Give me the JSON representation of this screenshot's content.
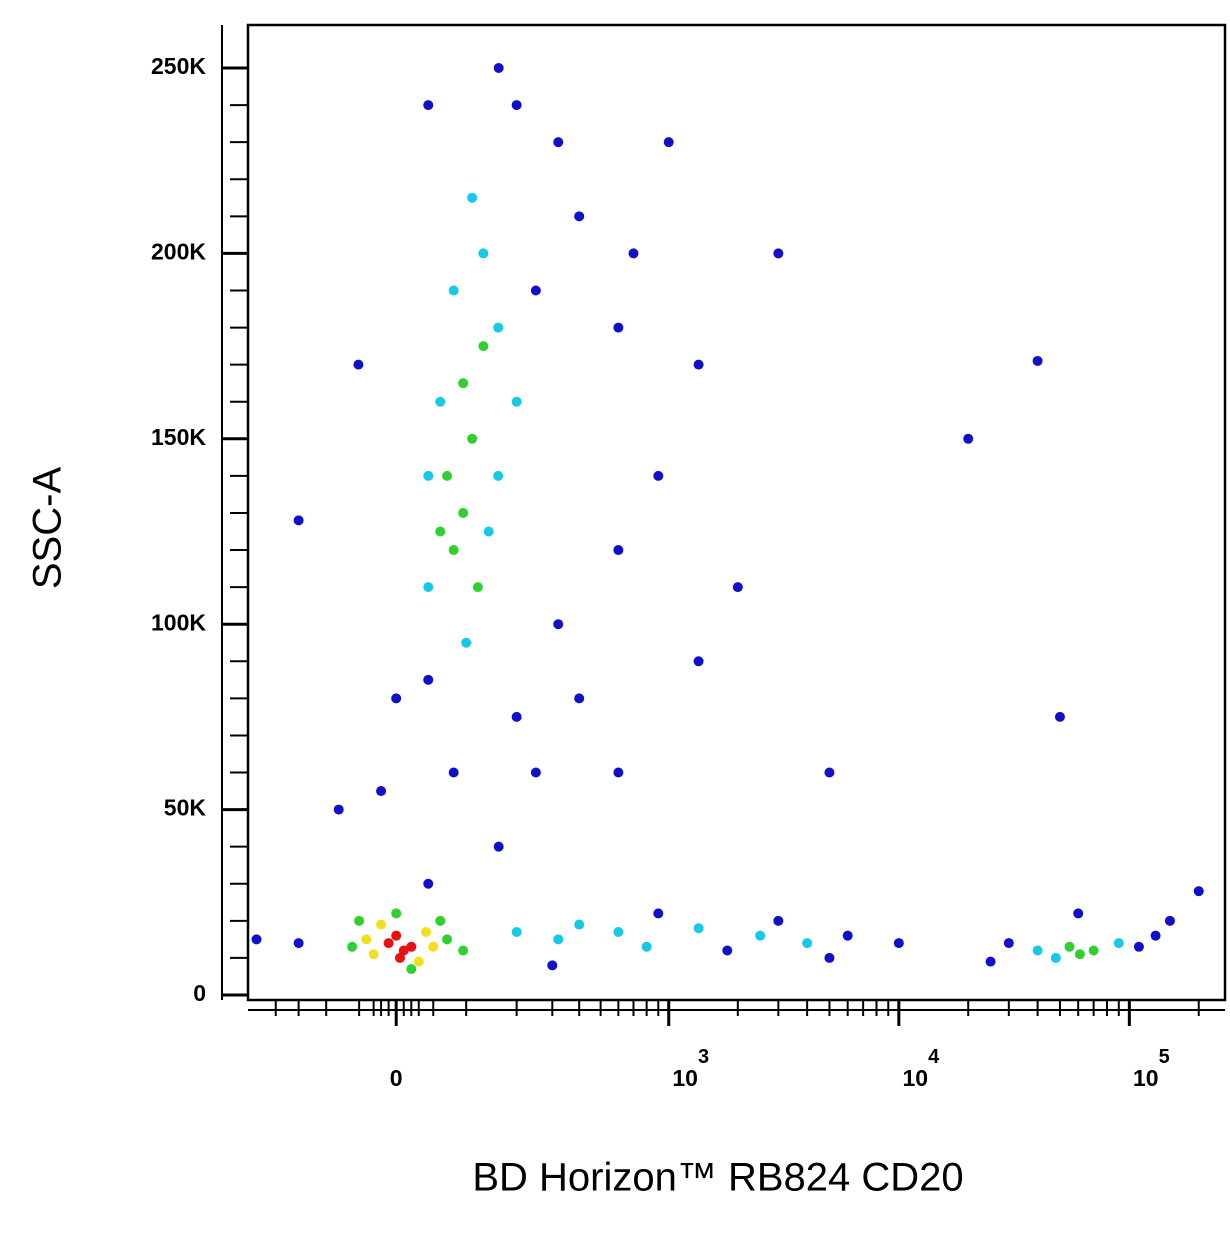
{
  "chart_data": {
    "type": "scatter",
    "x_label": "BD Horizon™ RB824 CD20",
    "y_label": "SSC-A",
    "xscale": "biexponential",
    "xlim": [
      -275,
      260000
    ],
    "xticks": [
      0,
      {
        "value": 1000,
        "label": "10",
        "sup": "3"
      },
      {
        "value": 10000,
        "label": "10",
        "sup": "4"
      },
      {
        "value": 100000,
        "label": "10",
        "sup": "5"
      }
    ],
    "ylim": [
      -1350,
      261600
    ],
    "yticks": [
      0,
      {
        "value": 50000,
        "label": "50K"
      },
      {
        "value": 100000,
        "label": "100K"
      },
      {
        "value": 150000,
        "label": "150K"
      },
      {
        "value": 200000,
        "label": "200K"
      },
      {
        "value": 250000,
        "label": "250K"
      }
    ],
    "series": [
      {
        "color": "#1010c8",
        "x": [
          320,
          200,
          43,
          160,
          400,
          600,
          1000,
          1350,
          320,
          600,
          900,
          250,
          -20,
          0,
          80,
          160,
          43,
          -80,
          600,
          1350,
          3000,
          2000,
          400,
          200,
          43,
          250,
          700,
          5000,
          20000,
          40000,
          50000,
          -150,
          -51,
          6000,
          10000,
          3000,
          1800,
          5000,
          900,
          300,
          -150,
          -250,
          30000,
          110000,
          130000,
          25000,
          150000,
          60000,
          200000
        ],
        "y": [
          230000,
          240000,
          240000,
          250000,
          210000,
          180000,
          230000,
          170000,
          100000,
          120000,
          140000,
          60000,
          55000,
          80000,
          60000,
          40000,
          30000,
          50000,
          60000,
          90000,
          200000,
          110000,
          80000,
          75000,
          85000,
          190000,
          200000,
          60000,
          150000,
          171000,
          75000,
          128000,
          170000,
          16000,
          14000,
          20000,
          12000,
          10000,
          22000,
          8000,
          14000,
          15000,
          14000,
          13000,
          16000,
          9000,
          20000,
          22000,
          28000
        ]
      },
      {
        "color": "#18c8e8",
        "x": [
          159,
          60,
          43,
          159,
          130,
          100,
          200,
          43,
          80,
          140,
          110,
          200,
          320,
          600,
          1350,
          2500,
          4000,
          800,
          400,
          40000,
          90000,
          48000
        ],
        "y": [
          180000,
          160000,
          140000,
          140000,
          200000,
          95000,
          160000,
          110000,
          190000,
          125000,
          215000,
          17000,
          15000,
          17000,
          18000,
          16000,
          14000,
          13000,
          19000,
          12000,
          14000,
          10000
        ]
      },
      {
        "color": "#30d030",
        "x": [
          -60,
          70,
          0,
          20,
          -50,
          60,
          95,
          95,
          80,
          110,
          95,
          130,
          70,
          120,
          60,
          61000,
          55000,
          70000
        ],
        "y": [
          13000,
          15000,
          22000,
          7000,
          20000,
          20000,
          12000,
          130000,
          120000,
          150000,
          165000,
          175000,
          140000,
          110000,
          125000,
          11000,
          13000,
          12000
        ]
      },
      {
        "color": "#f0e020",
        "x": [
          -40,
          40,
          -20,
          30,
          50,
          -30
        ],
        "y": [
          15000,
          17000,
          19000,
          9000,
          13000,
          11000
        ]
      },
      {
        "color": "#e81010",
        "x": [
          -10,
          10,
          0,
          20,
          5
        ],
        "y": [
          14000,
          12000,
          16000,
          13000,
          10000
        ]
      }
    ]
  }
}
